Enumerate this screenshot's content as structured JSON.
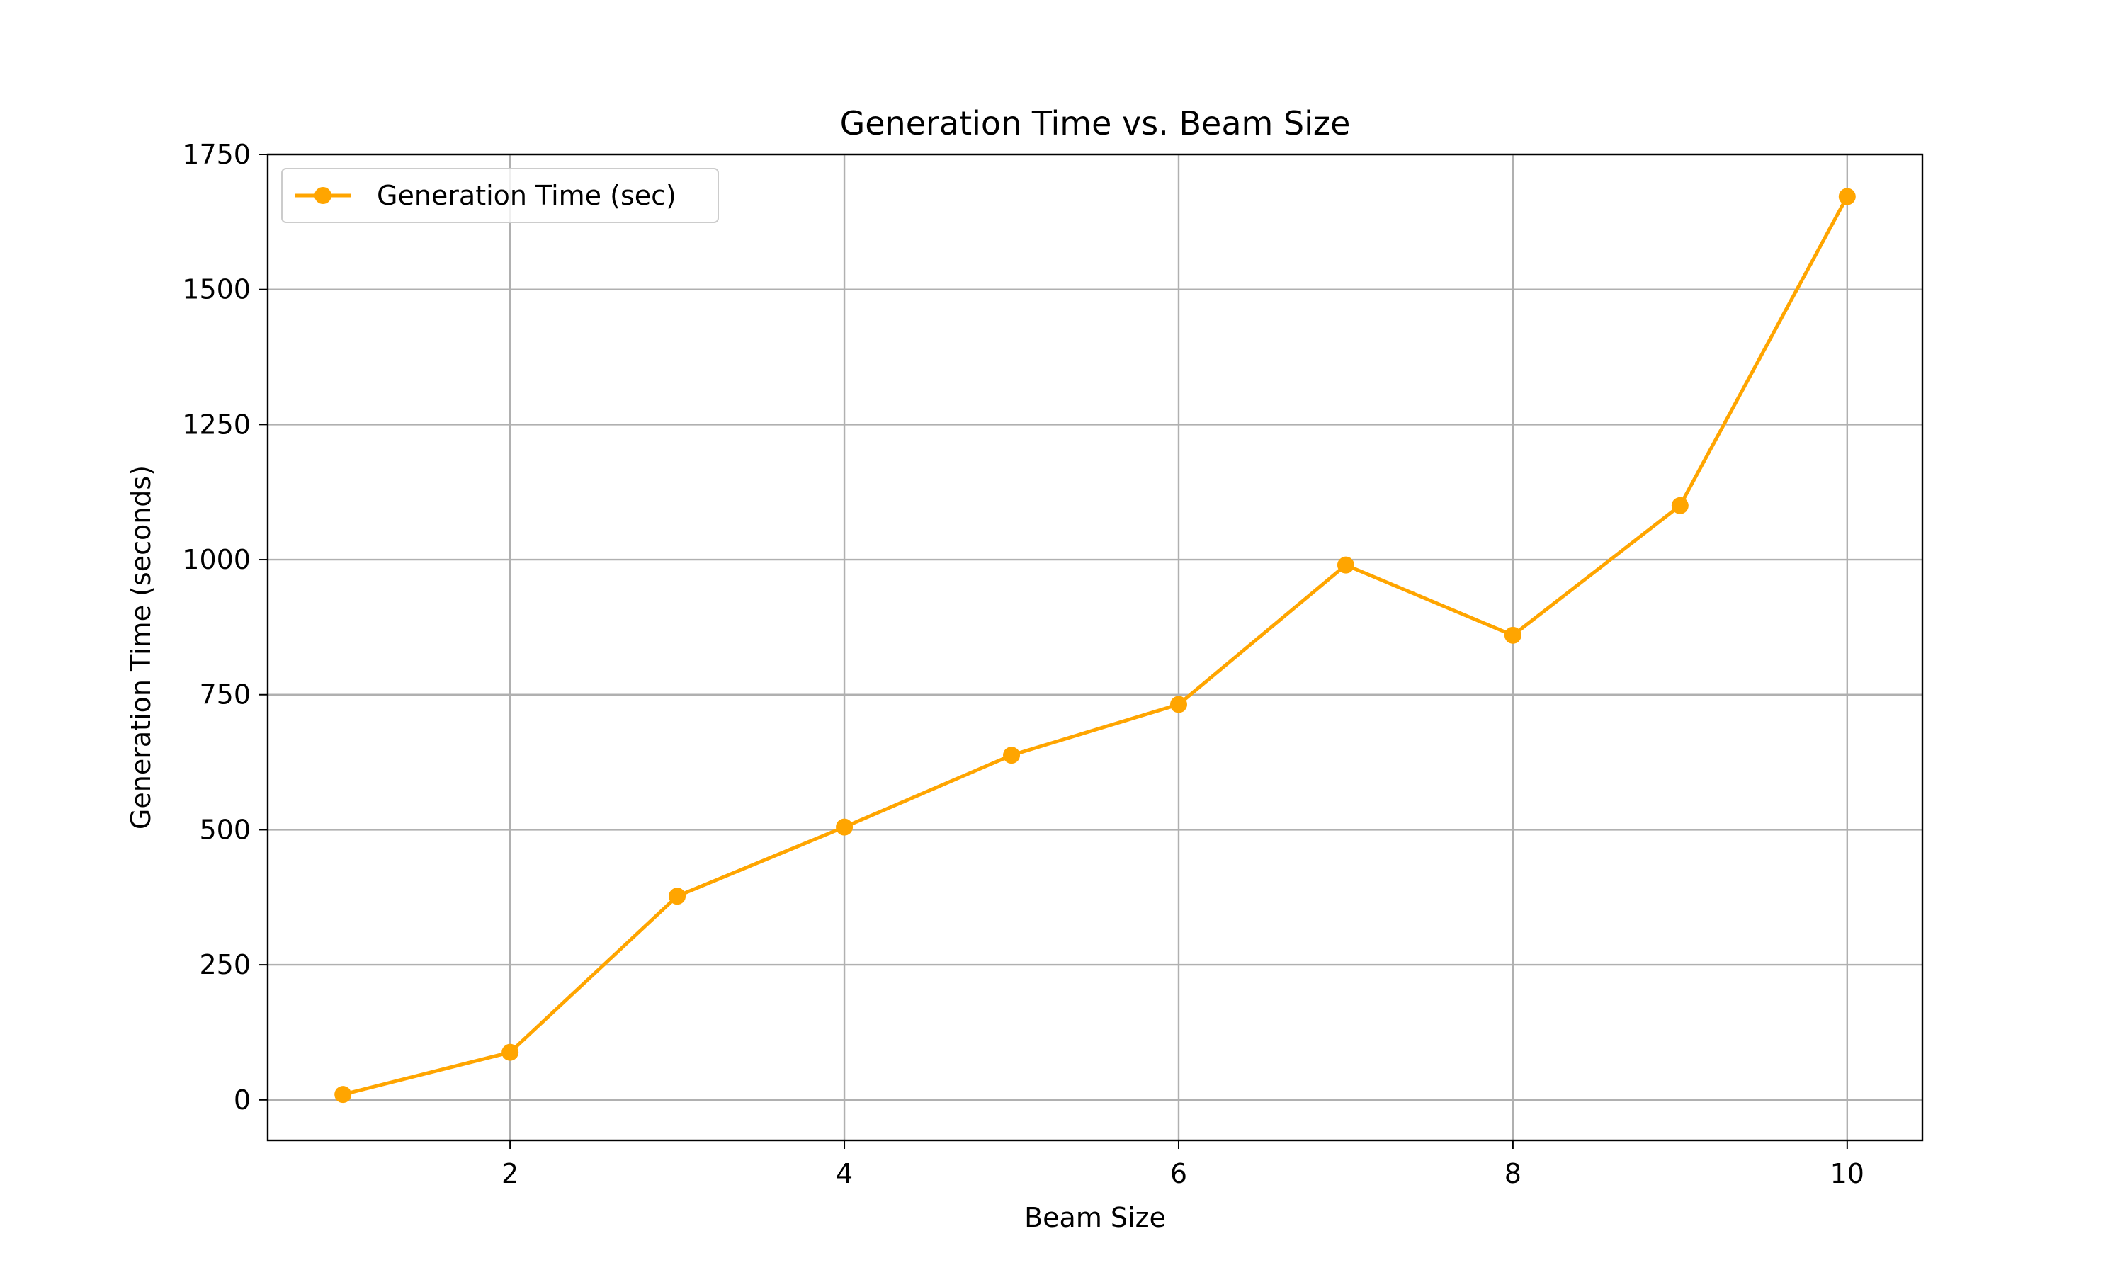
{
  "chart_data": {
    "type": "line",
    "title": "Generation Time vs. Beam Size",
    "xlabel": "Beam Size",
    "ylabel": "Generation Time (seconds)",
    "x": [
      1,
      2,
      3,
      4,
      5,
      6,
      7,
      8,
      9,
      10
    ],
    "series": [
      {
        "name": "Generation Time (sec)",
        "values": [
          10,
          88,
          377,
          505,
          638,
          732,
          990,
          860,
          1100,
          1672
        ],
        "color": "#ffa500",
        "marker": "circle"
      }
    ],
    "xlim": [
      0.55,
      10.45
    ],
    "ylim": [
      -75,
      1750
    ],
    "xticks": [
      2,
      4,
      6,
      8,
      10
    ],
    "yticks": [
      0,
      250,
      500,
      750,
      1000,
      1250,
      1500,
      1750
    ],
    "grid": true,
    "legend_position": "top-left"
  }
}
